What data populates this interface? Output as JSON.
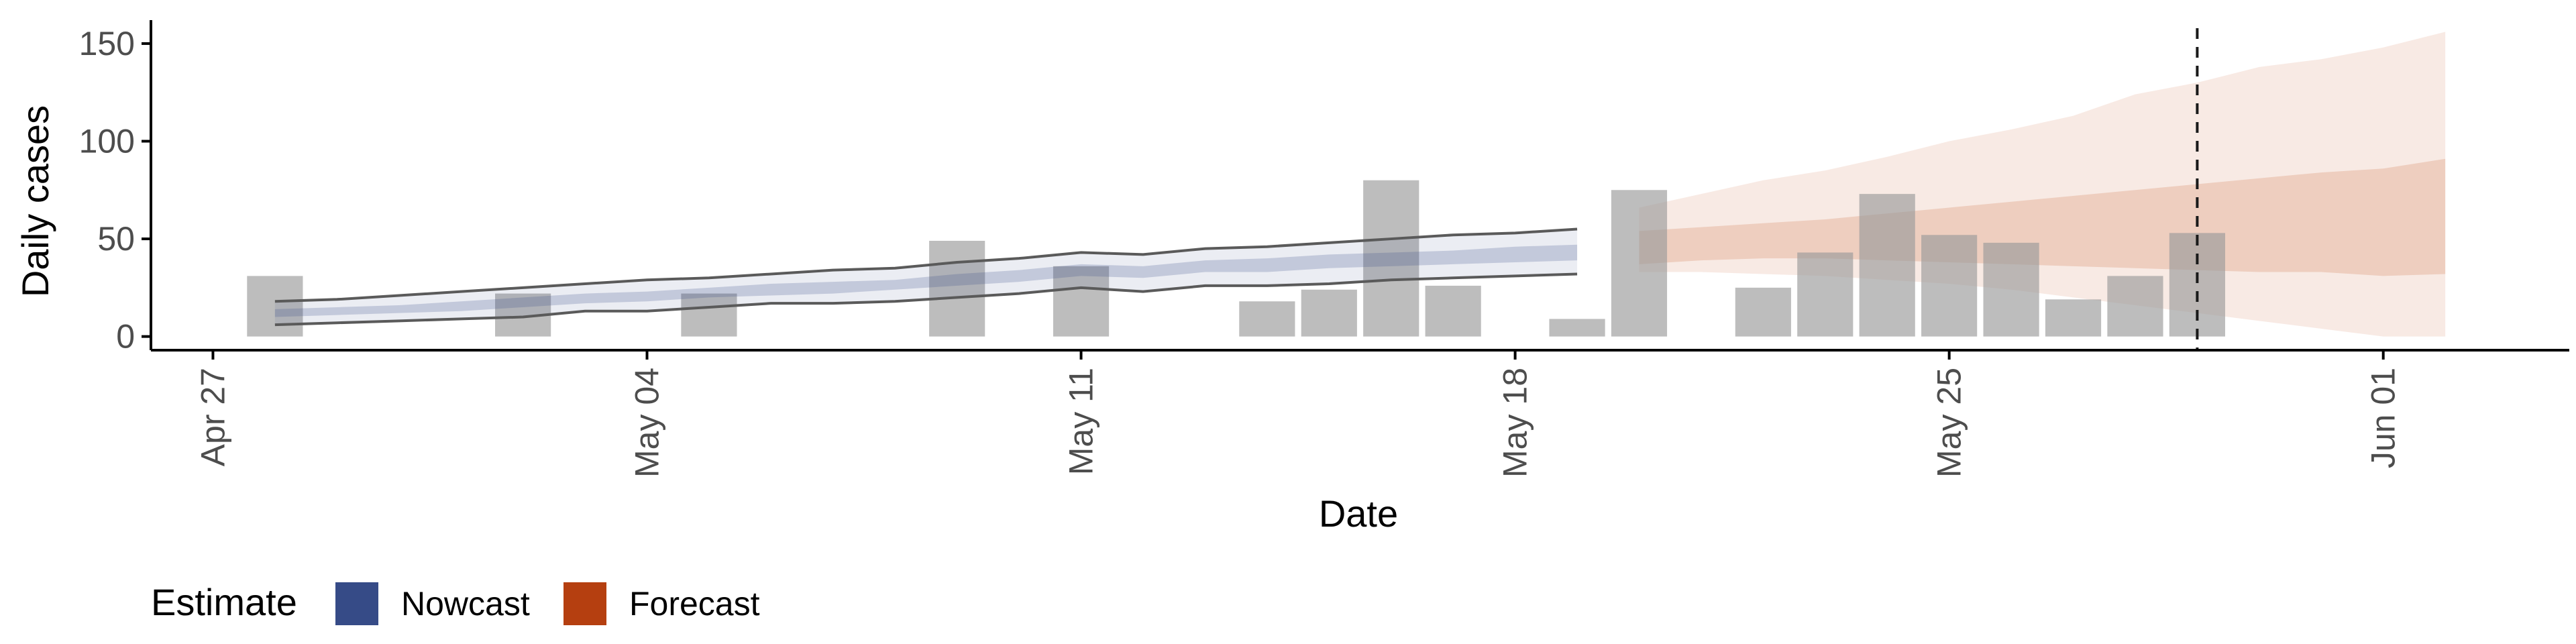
{
  "chart_data": {
    "type": "bar",
    "title": "",
    "xlabel": "Date",
    "ylabel": "Daily cases",
    "x_range": [
      "2020-04-26",
      "2020-06-04"
    ],
    "ylim": [
      -7,
      162
    ],
    "x_ticks": [
      {
        "date": "2020-04-27",
        "label": "Apr 27"
      },
      {
        "date": "2020-05-04",
        "label": "May 04"
      },
      {
        "date": "2020-05-11",
        "label": "May 11"
      },
      {
        "date": "2020-05-18",
        "label": "May 18"
      },
      {
        "date": "2020-05-25",
        "label": "May 25"
      },
      {
        "date": "2020-06-01",
        "label": "Jun 01"
      }
    ],
    "y_ticks": [
      0,
      50,
      100,
      150
    ],
    "grid": false,
    "reference_line": {
      "date": "2020-05-29",
      "style": "dashed"
    },
    "observed_cases": [
      {
        "date": "2020-04-28",
        "value": 31
      },
      {
        "date": "2020-05-02",
        "value": 22
      },
      {
        "date": "2020-05-05",
        "value": 22
      },
      {
        "date": "2020-05-09",
        "value": 49
      },
      {
        "date": "2020-05-11",
        "value": 36
      },
      {
        "date": "2020-05-14",
        "value": 18
      },
      {
        "date": "2020-05-15",
        "value": 24
      },
      {
        "date": "2020-05-16",
        "value": 80
      },
      {
        "date": "2020-05-17",
        "value": 26
      },
      {
        "date": "2020-05-19",
        "value": 9
      },
      {
        "date": "2020-05-20",
        "value": 75
      },
      {
        "date": "2020-05-22",
        "value": 25
      },
      {
        "date": "2020-05-23",
        "value": 43
      },
      {
        "date": "2020-05-24",
        "value": 73
      },
      {
        "date": "2020-05-25",
        "value": 52
      },
      {
        "date": "2020-05-26",
        "value": 48
      },
      {
        "date": "2020-05-27",
        "value": 19
      },
      {
        "date": "2020-05-28",
        "value": 31
      },
      {
        "date": "2020-05-29",
        "value": 53
      }
    ],
    "nowcast": {
      "dates": [
        "2020-04-28",
        "2020-04-29",
        "2020-04-30",
        "2020-05-01",
        "2020-05-02",
        "2020-05-03",
        "2020-05-04",
        "2020-05-05",
        "2020-05-06",
        "2020-05-07",
        "2020-05-08",
        "2020-05-09",
        "2020-05-10",
        "2020-05-11",
        "2020-05-12",
        "2020-05-13",
        "2020-05-14",
        "2020-05-15",
        "2020-05-16",
        "2020-05-17",
        "2020-05-18",
        "2020-05-19"
      ],
      "outer_lower": [
        6,
        7,
        8,
        9,
        10,
        13,
        13,
        15,
        17,
        17,
        18,
        20,
        22,
        25,
        23,
        26,
        26,
        27,
        29,
        30,
        31,
        32
      ],
      "outer_upper": [
        18,
        19,
        21,
        23,
        25,
        27,
        29,
        30,
        32,
        34,
        35,
        38,
        40,
        43,
        42,
        45,
        46,
        48,
        50,
        52,
        53,
        55
      ],
      "inner_lower": [
        10,
        11,
        12,
        13,
        15,
        17,
        18,
        20,
        21,
        22,
        24,
        26,
        28,
        31,
        30,
        33,
        33,
        35,
        36,
        37,
        38,
        39
      ],
      "inner_upper": [
        14,
        15,
        16,
        18,
        20,
        22,
        23,
        25,
        27,
        28,
        29,
        32,
        34,
        37,
        36,
        39,
        40,
        42,
        43,
        44,
        46,
        47
      ]
    },
    "forecast": {
      "dates": [
        "2020-05-20",
        "2020-05-21",
        "2020-05-22",
        "2020-05-23",
        "2020-05-24",
        "2020-05-25",
        "2020-05-26",
        "2020-05-27",
        "2020-05-28",
        "2020-05-29",
        "2020-05-30",
        "2020-05-31",
        "2020-06-01",
        "2020-06-02"
      ],
      "outer_lower": [
        33,
        33,
        32,
        31,
        29,
        27,
        24,
        20,
        16,
        12,
        8,
        4,
        0,
        0
      ],
      "outer_upper": [
        66,
        73,
        80,
        85,
        92,
        100,
        106,
        113,
        124,
        130,
        138,
        142,
        148,
        156
      ],
      "inner_lower": [
        37,
        39,
        40,
        40,
        39,
        38,
        37,
        36,
        35,
        34,
        33,
        33,
        31,
        32
      ],
      "inner_upper": [
        54,
        56,
        58,
        60,
        63,
        66,
        69,
        72,
        75,
        78,
        81,
        84,
        86,
        91
      ]
    },
    "legend": {
      "placement": "bottom-left",
      "title": "Estimate",
      "entries": [
        {
          "label": "Nowcast",
          "color": "#364B87"
        },
        {
          "label": "Forecast",
          "color": "#B53F10"
        }
      ]
    },
    "colors": {
      "bars": "#999999",
      "nowcast_band": "#364B87",
      "nowcast_line": "#5a5a5a",
      "forecast_band": "#C8602C",
      "reference_line": "#1a1a1a",
      "axis": "#000000"
    }
  }
}
